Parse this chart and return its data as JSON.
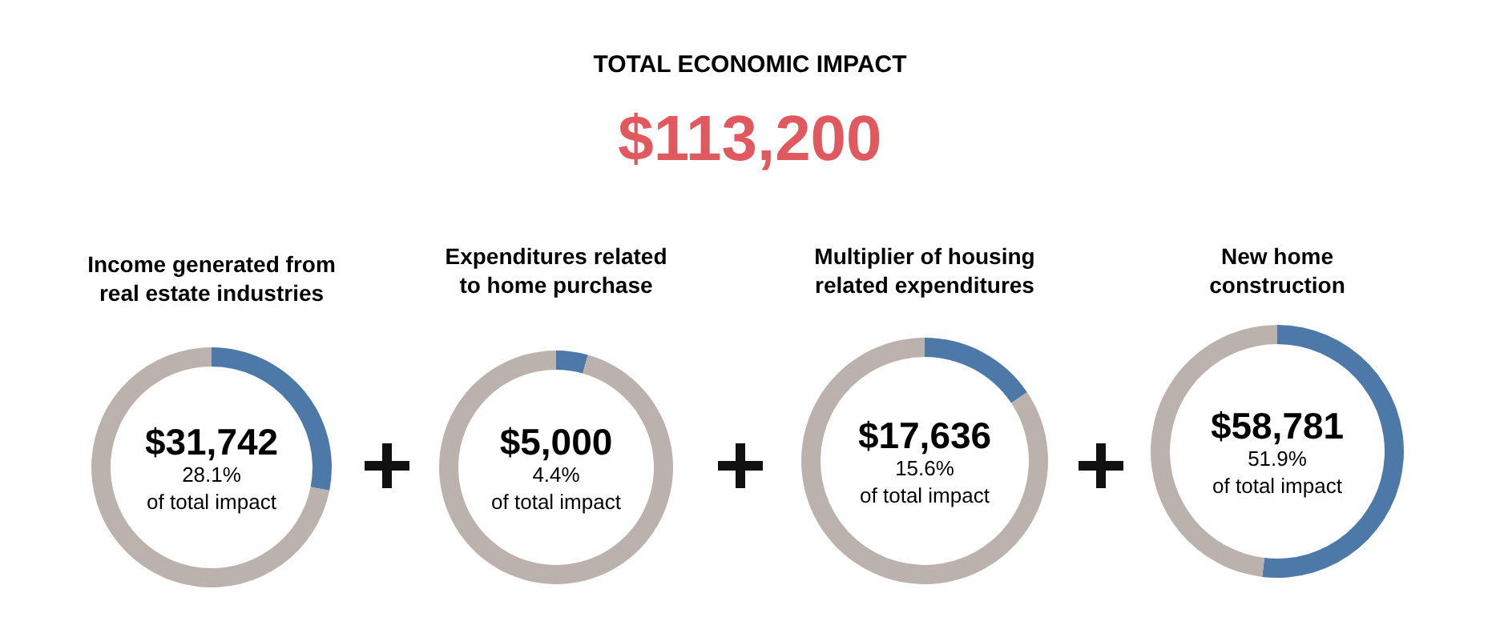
{
  "chart_data": [
    {
      "type": "other",
      "title": "TOTAL ECONOMIC IMPACT",
      "subtitle": "$113,200"
    },
    {
      "type": "donut",
      "title": "Income generated from real estate industries",
      "categories": [
        null,
        null
      ],
      "values": [
        28.1,
        71.9
      ],
      "colors": [
        "#4d79a8",
        "#bbb2ae"
      ],
      "annotations": [
        "$31,742",
        "28.1%",
        "of total impact"
      ]
    },
    {
      "type": "donut",
      "title": "Expenditures related to home purchase",
      "categories": [
        null,
        null
      ],
      "values": [
        4.4,
        95.6
      ],
      "colors": [
        "#4d79a8",
        "#bbb2ae"
      ],
      "annotations": [
        "$5,000",
        "4.4%",
        "of total impact"
      ]
    },
    {
      "type": "donut",
      "title": "Multiplier of housing related expenditures",
      "categories": [
        null,
        null
      ],
      "values": [
        15.6,
        84.4
      ],
      "colors": [
        "#4d79a8",
        "#bbb2ae"
      ],
      "annotations": [
        "$17,636",
        "15.6%",
        "of total impact"
      ]
    },
    {
      "type": "donut",
      "title": "New home construction",
      "categories": [
        null,
        null
      ],
      "values": [
        51.9,
        48.1
      ],
      "colors": [
        "#4d79a8",
        "#bbb2ae"
      ],
      "annotations": [
        "$58,781",
        "51.9%",
        "of total impact"
      ]
    }
  ]
}
